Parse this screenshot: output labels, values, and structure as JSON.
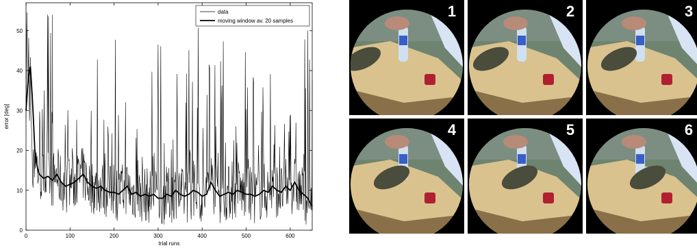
{
  "chart_data": {
    "type": "line",
    "title": "",
    "xlabel": "trial runs",
    "ylabel": "error [deg]",
    "xlim": [
      0,
      650
    ],
    "ylim": [
      0,
      57
    ],
    "x_ticks": [
      0,
      100,
      200,
      300,
      400,
      500,
      600
    ],
    "y_ticks": [
      0,
      10,
      20,
      30,
      40,
      50
    ],
    "grid": false,
    "legend_position": "top-right",
    "series": [
      {
        "name": "data",
        "style": "thin",
        "color": "#000000",
        "x": [
          0,
          2,
          4,
          6,
          8,
          10,
          12,
          14,
          16,
          18,
          20,
          25,
          30,
          40,
          50,
          60,
          70,
          80,
          100,
          120,
          140,
          160,
          180,
          200,
          220,
          240,
          260,
          280,
          300,
          320,
          340,
          360,
          380,
          400,
          420,
          440,
          460,
          480,
          500,
          520,
          540,
          560,
          580,
          600,
          620,
          640,
          650
        ],
        "y": [
          30,
          52,
          38,
          44,
          26,
          40,
          22,
          18,
          12,
          20,
          8,
          16,
          10,
          14,
          9,
          54,
          6,
          18,
          12,
          10,
          8,
          14,
          12,
          9,
          11,
          7,
          13,
          10,
          8,
          12,
          9,
          11,
          13,
          10,
          8,
          12,
          10,
          9,
          11,
          8,
          12,
          10,
          14,
          6,
          9,
          11,
          8
        ],
        "notes": "high-frequency noisy trace, spikes up to ~55 and dips near 0; only the overall trend is approximated"
      },
      {
        "name": "moving window av. 20 samples",
        "style": "thick",
        "color": "#000000",
        "x": [
          0,
          5,
          10,
          15,
          20,
          25,
          30,
          40,
          50,
          60,
          70,
          80,
          90,
          100,
          110,
          120,
          130,
          140,
          150,
          160,
          170,
          180,
          190,
          200,
          210,
          220,
          230,
          240,
          250,
          260,
          270,
          280,
          290,
          300,
          310,
          320,
          330,
          340,
          350,
          360,
          370,
          380,
          390,
          400,
          410,
          420,
          430,
          440,
          450,
          460,
          470,
          480,
          490,
          500,
          510,
          520,
          530,
          540,
          550,
          560,
          570,
          580,
          590,
          600,
          610,
          620,
          630,
          640,
          650
        ],
        "y": [
          30,
          38,
          41,
          32,
          20,
          16,
          14,
          13,
          13.5,
          12.5,
          14,
          12,
          11,
          11.5,
          12,
          13,
          14,
          12,
          11,
          10.5,
          11,
          10,
          9.5,
          9.5,
          9,
          10,
          11,
          9,
          9.5,
          8.5,
          9,
          8.5,
          9,
          8,
          8,
          9,
          8.5,
          10,
          9,
          8.5,
          9,
          10,
          9.5,
          8.5,
          9,
          12,
          10,
          8.5,
          9,
          9.5,
          9,
          10,
          9.5,
          9,
          9,
          8.5,
          9,
          10,
          9.5,
          11,
          10,
          9.5,
          11,
          10,
          12,
          10,
          9,
          8,
          6
        ]
      }
    ]
  },
  "frames": {
    "labels": [
      "1",
      "2",
      "3",
      "4",
      "5",
      "6"
    ]
  }
}
